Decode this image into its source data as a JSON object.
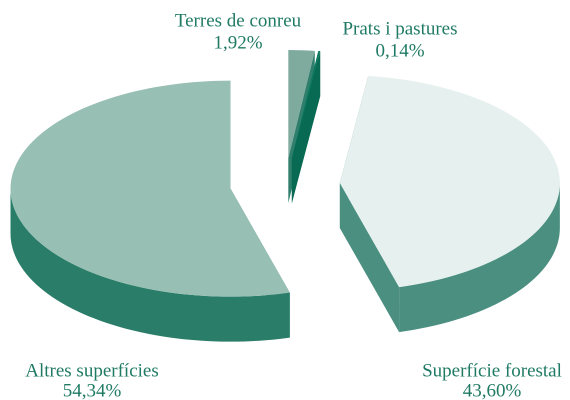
{
  "chart_data": {
    "type": "pie3d",
    "categories": [
      "Terres de conreu",
      "Prats i pastures",
      "Superfície forestal",
      "Altres superfícies"
    ],
    "values": [
      1.92,
      0.14,
      43.6,
      54.34
    ],
    "value_labels": [
      "1,92%",
      "0,14%",
      "43,60%",
      "54,34%"
    ],
    "colors": [
      "#7fab9f",
      "#0b7a5e",
      "#e6f0ee",
      "#98bfb4"
    ],
    "side_colors": [
      "#2f7f6c",
      "#086a52",
      "#4a8f80",
      "#2a7d68"
    ]
  }
}
